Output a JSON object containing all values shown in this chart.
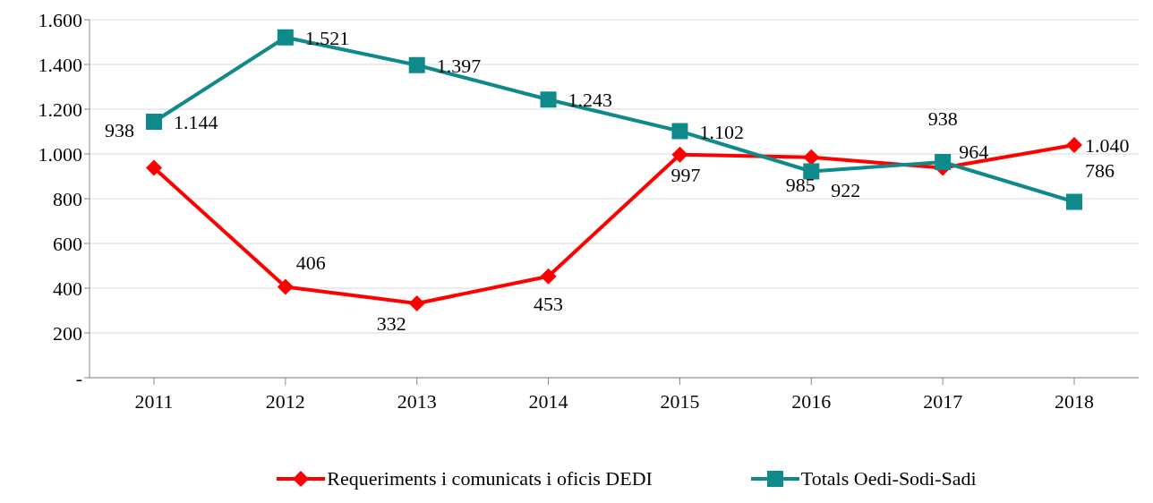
{
  "chart_data": {
    "type": "line",
    "categories": [
      "2011",
      "2012",
      "2013",
      "2014",
      "2015",
      "2016",
      "2017",
      "2018"
    ],
    "ylim": [
      0,
      1600
    ],
    "yticks": [
      {
        "value": 0,
        "label": "-"
      },
      {
        "value": 200,
        "label": "200"
      },
      {
        "value": 400,
        "label": "400"
      },
      {
        "value": 600,
        "label": "600"
      },
      {
        "value": 800,
        "label": "800"
      },
      {
        "value": 1000,
        "label": "1.000"
      },
      {
        "value": 1200,
        "label": "1.200"
      },
      {
        "value": 1400,
        "label": "1.400"
      },
      {
        "value": 1600,
        "label": "1.600"
      }
    ],
    "grid": "y",
    "legend": "bottom",
    "series": [
      {
        "name": "Requeriments i comunicats i oficis DEDI",
        "color": "#ff0000",
        "marker": "diamond",
        "values": [
          938,
          406,
          332,
          453,
          997,
          985,
          938,
          1040
        ],
        "value_labels": [
          "938",
          "406",
          "332",
          "453",
          "997",
          "985",
          "938",
          "1.040"
        ]
      },
      {
        "name": "Totals Oedi-Sodi-Sadi",
        "color": "#0f8a8a",
        "marker": "square",
        "values": [
          1144,
          1521,
          1397,
          1243,
          1102,
          922,
          964,
          786
        ],
        "value_labels": [
          "1.144",
          "1.521",
          "1.397",
          "1.243",
          "1.102",
          "922",
          "964",
          "786"
        ]
      }
    ]
  }
}
